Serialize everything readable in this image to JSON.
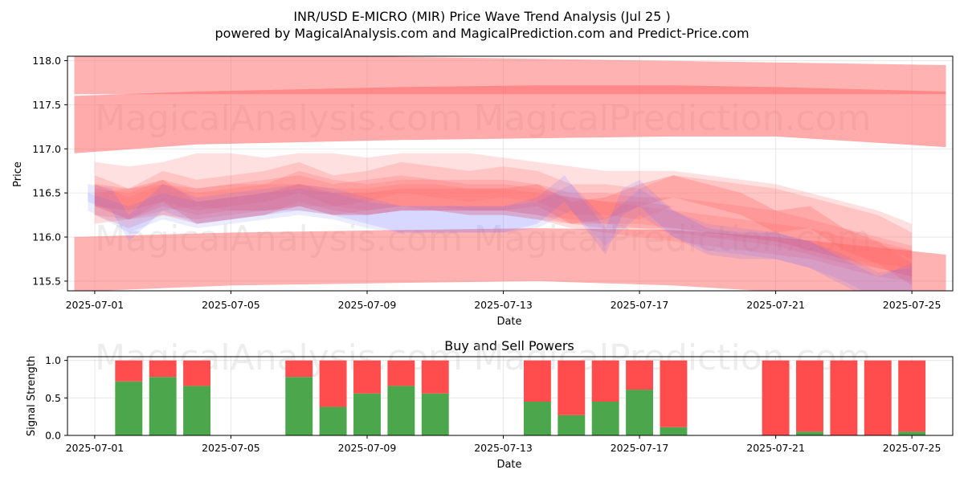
{
  "chart_data": [
    {
      "type": "area",
      "title_line1": "INR/USD E-MICRO (MIR) Price Wave Trend Analysis (Jul 25 )",
      "title_line2": "powered by MagicalAnalysis.com and MagicalPrediction.com and Predict-Price.com",
      "xlabel": "Date",
      "ylabel": "Price",
      "x_tick_labels": [
        "2025-07-01",
        "2025-07-05",
        "2025-07-09",
        "2025-07-13",
        "2025-07-17",
        "2025-07-21",
        "2025-07-25"
      ],
      "x_tick_days": [
        1,
        5,
        9,
        13,
        17,
        21,
        25
      ],
      "xlim_days": [
        0.2,
        26.2
      ],
      "y_ticks": [
        115.5,
        116.0,
        116.5,
        117.0,
        117.5,
        118.0
      ],
      "y_tick_labels": [
        "115.5",
        "116.0",
        "116.5",
        "117.0",
        "117.5",
        "118.0"
      ],
      "ylim": [
        115.39,
        118.05
      ],
      "grid": true,
      "watermarks": [
        "MagicalAnalysis.com",
        "MagicalPrediction.com"
      ],
      "bands": [
        {
          "color": "#ff6666",
          "opacity": 0.5,
          "x": [
            0.4,
            26
          ],
          "upper": [
            118.1,
            117.95
          ],
          "lower": [
            117.62,
            117.62
          ]
        },
        {
          "color": "#ff6666",
          "opacity": 0.55,
          "x": [
            0.4,
            4,
            10,
            14,
            18,
            21,
            26
          ],
          "upper": [
            117.6,
            117.65,
            117.7,
            117.72,
            117.72,
            117.7,
            117.65
          ],
          "lower": [
            116.95,
            117.05,
            117.1,
            117.12,
            117.14,
            117.14,
            117.02
          ]
        },
        {
          "color": "#ff6666",
          "opacity": 0.5,
          "x": [
            0.4,
            5,
            10,
            14,
            18,
            21,
            26
          ],
          "upper": [
            116.0,
            116.05,
            116.08,
            116.1,
            116.08,
            116.0,
            115.8
          ],
          "lower": [
            115.38,
            115.45,
            115.48,
            115.5,
            115.45,
            115.38,
            115.3
          ]
        },
        {
          "color": "#ff6666",
          "opacity": 0.2,
          "x": [
            1,
            2,
            3,
            4,
            5,
            6,
            7,
            8,
            9,
            10,
            11,
            12,
            13,
            14,
            15,
            16,
            17,
            18,
            19,
            20,
            21,
            22,
            23,
            24,
            25
          ],
          "upper": [
            116.85,
            116.8,
            116.85,
            116.95,
            116.95,
            116.9,
            116.95,
            116.95,
            116.9,
            116.95,
            116.95,
            116.95,
            116.9,
            116.85,
            116.8,
            116.75,
            116.75,
            116.75,
            116.7,
            116.65,
            116.6,
            116.5,
            116.4,
            116.3,
            116.15
          ],
          "lower": [
            116.35,
            116.2,
            116.3,
            116.35,
            116.3,
            116.3,
            116.35,
            116.35,
            116.3,
            116.35,
            116.35,
            116.3,
            116.3,
            116.25,
            116.2,
            116.15,
            116.15,
            116.1,
            116.05,
            116.0,
            115.95,
            115.85,
            115.75,
            115.7,
            115.65
          ]
        },
        {
          "color": "#ff6666",
          "opacity": 0.22,
          "x": [
            1,
            2,
            3,
            4,
            5,
            6,
            7,
            8,
            9,
            10,
            11,
            12,
            13,
            14,
            15,
            16,
            17,
            18,
            19,
            20,
            21,
            22,
            23,
            24,
            25
          ],
          "upper": [
            116.7,
            116.55,
            116.75,
            116.65,
            116.7,
            116.75,
            116.85,
            116.7,
            116.75,
            116.85,
            116.8,
            116.75,
            116.8,
            116.75,
            116.6,
            116.6,
            116.55,
            116.7,
            116.65,
            116.6,
            116.55,
            116.45,
            116.35,
            116.25,
            116.05
          ],
          "lower": [
            116.35,
            116.2,
            116.4,
            116.3,
            116.35,
            116.4,
            116.5,
            116.35,
            116.4,
            116.5,
            116.45,
            116.4,
            116.45,
            116.4,
            116.25,
            116.25,
            116.2,
            116.35,
            116.3,
            116.25,
            116.2,
            116.1,
            116.0,
            115.9,
            115.75
          ]
        },
        {
          "color": "#ff6666",
          "opacity": 0.22,
          "x": [
            1,
            2,
            3,
            4,
            5,
            6,
            7,
            8,
            9,
            10,
            11,
            12,
            13,
            14,
            15,
            16,
            17,
            18,
            19,
            20,
            21,
            22,
            23,
            24,
            25
          ],
          "upper": [
            116.6,
            116.45,
            116.6,
            116.55,
            116.6,
            116.65,
            116.7,
            116.6,
            116.65,
            116.7,
            116.65,
            116.65,
            116.65,
            116.6,
            116.5,
            116.5,
            116.45,
            116.45,
            116.4,
            116.35,
            116.3,
            116.2,
            116.1,
            116.0,
            115.9
          ],
          "lower": [
            116.25,
            116.1,
            116.25,
            116.2,
            116.25,
            116.3,
            116.35,
            116.25,
            116.3,
            116.35,
            116.3,
            116.3,
            116.3,
            116.25,
            116.15,
            116.15,
            116.1,
            116.1,
            116.05,
            116.0,
            115.95,
            115.85,
            115.75,
            115.65,
            115.55
          ]
        },
        {
          "color": "#ff6666",
          "opacity": 0.22,
          "x": [
            1,
            2,
            3,
            4,
            5,
            6,
            7,
            8,
            9,
            10,
            11,
            12,
            13,
            14,
            15,
            16,
            17,
            18,
            19,
            20,
            21,
            22,
            23,
            24,
            25
          ],
          "upper": [
            116.5,
            116.55,
            116.6,
            116.5,
            116.55,
            116.6,
            116.75,
            116.65,
            116.6,
            116.65,
            116.65,
            116.6,
            116.6,
            116.55,
            116.45,
            116.4,
            116.35,
            116.3,
            116.25,
            116.2,
            116.15,
            116.1,
            116.0,
            115.9,
            115.85
          ],
          "lower": [
            116.15,
            116.2,
            116.25,
            116.15,
            116.2,
            116.25,
            116.4,
            116.3,
            116.25,
            116.3,
            116.3,
            116.25,
            116.25,
            116.2,
            116.1,
            116.05,
            116.0,
            115.95,
            115.9,
            115.85,
            115.8,
            115.75,
            115.65,
            115.55,
            115.5
          ]
        },
        {
          "color": "#ff6666",
          "opacity": 0.22,
          "x": [
            1,
            2,
            3,
            4,
            5,
            6,
            7,
            8,
            9,
            10,
            11,
            12,
            13,
            14,
            15,
            16,
            17,
            18,
            19,
            20,
            21,
            22,
            23,
            24,
            25
          ],
          "upper": [
            116.55,
            116.5,
            116.65,
            116.55,
            116.6,
            116.6,
            116.6,
            116.55,
            116.55,
            116.6,
            116.6,
            116.55,
            116.55,
            116.5,
            116.45,
            116.4,
            116.4,
            116.35,
            116.3,
            116.25,
            116.2,
            116.1,
            116.0,
            115.95,
            115.85
          ],
          "lower": [
            116.25,
            116.2,
            116.35,
            116.25,
            116.3,
            116.3,
            116.3,
            116.25,
            116.25,
            116.3,
            116.3,
            116.25,
            116.25,
            116.2,
            116.15,
            116.1,
            116.1,
            116.05,
            116.0,
            115.95,
            115.9,
            115.8,
            115.7,
            115.65,
            115.55
          ]
        },
        {
          "color": "#ff6666",
          "opacity": 0.3,
          "x": [
            1,
            2,
            3,
            4,
            5,
            6,
            7,
            8,
            9,
            10,
            11,
            12,
            13,
            14,
            15,
            16,
            17,
            18,
            19,
            20,
            21,
            22,
            23,
            24,
            25
          ],
          "upper": [
            116.6,
            116.55,
            116.65,
            116.4,
            116.45,
            116.5,
            116.6,
            116.5,
            116.5,
            116.55,
            116.55,
            116.55,
            116.55,
            116.6,
            116.4,
            116.45,
            116.6,
            116.7,
            116.6,
            116.5,
            116.3,
            116.35,
            116.1,
            115.95,
            115.7
          ],
          "lower": [
            116.35,
            116.3,
            116.4,
            116.15,
            116.2,
            116.25,
            116.35,
            116.25,
            116.25,
            116.3,
            116.3,
            116.3,
            116.3,
            116.35,
            116.15,
            116.2,
            116.35,
            116.45,
            116.35,
            116.25,
            116.05,
            116.1,
            115.85,
            115.7,
            115.45
          ]
        },
        {
          "color": "#6666ff",
          "opacity": 0.15,
          "x": [
            0.8,
            1.5,
            2,
            3,
            4,
            5,
            6,
            7,
            8,
            9,
            10,
            11,
            12,
            13,
            14,
            14.8,
            16,
            16.5,
            17,
            18,
            19,
            20,
            21,
            22,
            23,
            24,
            25
          ],
          "upper": [
            116.6,
            116.55,
            116.25,
            116.6,
            116.45,
            116.5,
            116.55,
            116.6,
            116.55,
            116.45,
            116.35,
            116.35,
            116.35,
            116.35,
            116.45,
            116.7,
            116.1,
            116.55,
            116.65,
            116.3,
            116.1,
            116.05,
            116.05,
            115.95,
            115.75,
            115.55,
            115.7
          ],
          "lower": [
            116.4,
            116.3,
            115.95,
            116.3,
            116.15,
            116.2,
            116.25,
            116.3,
            116.25,
            116.15,
            116.05,
            116.05,
            116.05,
            116.05,
            116.15,
            116.4,
            115.8,
            116.25,
            116.35,
            116.0,
            115.8,
            115.75,
            115.75,
            115.65,
            115.45,
            115.25,
            115.4
          ]
        },
        {
          "color": "#6666ff",
          "opacity": 0.12,
          "x": [
            0.8,
            2,
            3,
            4,
            5,
            6,
            7,
            8,
            9,
            10,
            11,
            12,
            13,
            14,
            15,
            16,
            17,
            18,
            19,
            20,
            21,
            22,
            23,
            24,
            25
          ],
          "upper": [
            116.5,
            116.35,
            116.5,
            116.4,
            116.45,
            116.5,
            116.55,
            116.5,
            116.4,
            116.35,
            116.35,
            116.35,
            116.35,
            116.4,
            116.6,
            116.2,
            116.55,
            116.3,
            116.15,
            116.1,
            116.05,
            115.95,
            115.8,
            115.6,
            115.65
          ],
          "lower": [
            116.3,
            116.05,
            116.2,
            116.1,
            116.15,
            116.2,
            116.25,
            116.2,
            116.1,
            116.05,
            116.05,
            116.05,
            116.05,
            116.1,
            116.3,
            115.9,
            116.25,
            116.0,
            115.85,
            115.8,
            115.75,
            115.65,
            115.5,
            115.3,
            115.35
          ]
        }
      ]
    },
    {
      "type": "bar",
      "title": "Buy and Sell Powers",
      "xlabel": "Date",
      "ylabel": "Signal Strength",
      "x_tick_labels": [
        "2025-07-01",
        "2025-07-05",
        "2025-07-09",
        "2025-07-13",
        "2025-07-17",
        "2025-07-21",
        "2025-07-25"
      ],
      "x_tick_days": [
        1,
        5,
        9,
        13,
        17,
        21,
        25
      ],
      "xlim_days": [
        0.2,
        26.2
      ],
      "y_ticks": [
        0.0,
        0.5,
        1.0
      ],
      "y_tick_labels": [
        "0.0",
        "0.5",
        "1.0"
      ],
      "ylim": [
        0,
        1.05
      ],
      "grid": true,
      "buy_color": "#4ca64c",
      "sell_color": "#ff4c4c",
      "watermarks": [
        "MagicalAnalysis.com",
        "MagicalPrediction.com"
      ],
      "series": [
        {
          "name": "Buy",
          "days": [
            2,
            3,
            4,
            7,
            8,
            9,
            10,
            11,
            14,
            15,
            16,
            17,
            18,
            21,
            22,
            23,
            24,
            25
          ],
          "values": [
            0.72,
            0.78,
            0.66,
            0.78,
            0.38,
            0.56,
            0.66,
            0.56,
            0.45,
            0.27,
            0.45,
            0.61,
            0.11,
            0.0,
            0.05,
            0.0,
            0.0,
            0.05
          ]
        },
        {
          "name": "Sell",
          "days": [
            2,
            3,
            4,
            7,
            8,
            9,
            10,
            11,
            14,
            15,
            16,
            17,
            18,
            21,
            22,
            23,
            24,
            25
          ],
          "values": [
            0.28,
            0.22,
            0.34,
            0.22,
            0.62,
            0.44,
            0.34,
            0.44,
            0.55,
            0.73,
            0.55,
            0.39,
            0.89,
            1.0,
            0.95,
            1.0,
            1.0,
            0.95
          ]
        }
      ]
    }
  ]
}
